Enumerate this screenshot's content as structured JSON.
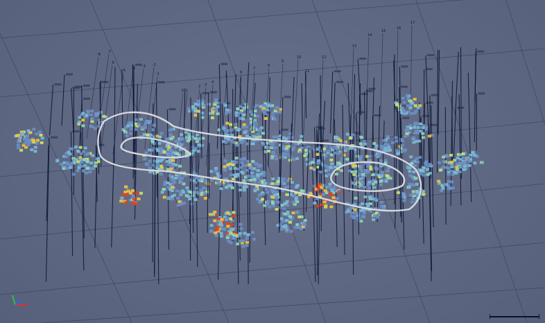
{
  "viewer": {
    "background": "#5c6680",
    "grid_color": "#2a3350",
    "outline_color": "#d7d9de",
    "drillhole_color": "#0c1430",
    "grade_palette": [
      "#6b8fc4",
      "#7bb8d6",
      "#8fd6b5",
      "#c9e26c",
      "#f2c13a",
      "#e0421f"
    ]
  },
  "section_labels": [
    "-8",
    "-7",
    "-6",
    "-5",
    "-4",
    "-3",
    "-2",
    "-1",
    "0",
    "1",
    "2",
    "3",
    "4",
    "5",
    "6",
    "7",
    "8",
    "9",
    "10",
    "11",
    "12",
    "13",
    "14",
    "15",
    "16",
    "17"
  ],
  "axis_triad": {
    "icon": "xyz-axis-triad-icon",
    "colors": [
      "#e03030",
      "#30c040",
      "#3060e0"
    ]
  },
  "scale_bar": {
    "icon": "scale-bar"
  }
}
